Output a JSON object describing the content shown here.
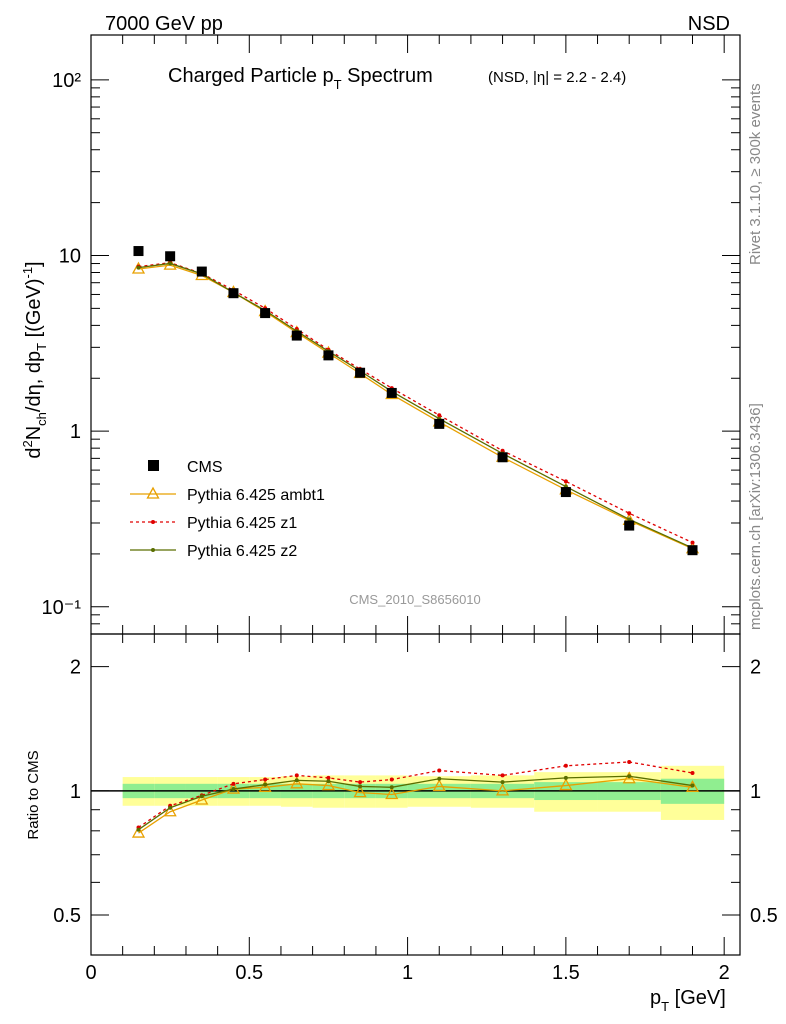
{
  "header": {
    "left": "7000 GeV pp",
    "right": "NSD"
  },
  "side_text": {
    "rivet": "Rivet 3.1.10, ≥ 300k events",
    "mcplots": "mcplots.cern.ch [arXiv:1306.3436]"
  },
  "chart_data": {
    "type": "line",
    "title_main": "Charged Particle p",
    "title_sub": "T",
    "title_main2": " Spectrum",
    "title_extra": "(NSD, |η| = 2.2 - 2.4)",
    "watermark": "CMS_2010_S8656010",
    "xlabel": "p",
    "xlabel_sub": "T",
    "xlabel_unit": " [GeV]",
    "xlim": [
      0,
      2.05
    ],
    "main_ylim_log": [
      0.07,
      180
    ],
    "ratio_ylim_log": [
      0.4,
      2.4
    ],
    "ylabel_ratio": "Ratio to CMS",
    "x_ticks": [
      "0",
      "0.5",
      "1",
      "1.5",
      "2"
    ],
    "main_y_ticks": [
      "10⁻¹",
      "1",
      "10",
      "10²"
    ],
    "ratio_y_ticks": [
      "0.5",
      "1",
      "2"
    ],
    "x": [
      0.15,
      0.25,
      0.35,
      0.45,
      0.55,
      0.65,
      0.75,
      0.85,
      0.95,
      1.1,
      1.3,
      1.5,
      1.7,
      1.9
    ],
    "bin_edges": [
      0.1,
      0.2,
      0.3,
      0.4,
      0.5,
      0.6,
      0.7,
      0.8,
      0.9,
      1.0,
      1.2,
      1.4,
      1.6,
      1.8,
      2.0
    ],
    "data": {
      "name": "CMS",
      "values": [
        10.6,
        9.9,
        8.1,
        6.1,
        4.7,
        3.5,
        2.7,
        2.15,
        1.65,
        1.1,
        0.71,
        0.45,
        0.29,
        0.21
      ],
      "band_green_half": [
        0.04,
        0.04,
        0.04,
        0.04,
        0.04,
        0.04,
        0.04,
        0.04,
        0.04,
        0.04,
        0.04,
        0.05,
        0.05,
        0.07
      ],
      "band_yellow_half": [
        0.08,
        0.08,
        0.08,
        0.08,
        0.08,
        0.085,
        0.09,
        0.09,
        0.09,
        0.085,
        0.09,
        0.11,
        0.11,
        0.15
      ]
    },
    "series": [
      {
        "name": "Pythia 6.425 ambt1",
        "color": "#e8a000",
        "marker": "triangle",
        "ratio": [
          0.79,
          0.89,
          0.95,
          1.01,
          1.02,
          1.04,
          1.03,
          0.99,
          0.98,
          1.025,
          1.0,
          1.03,
          1.07,
          1.02
        ]
      },
      {
        "name": "Pythia 6.425 z1",
        "color": "#e00000",
        "marker": "dot",
        "ratio": [
          0.815,
          0.92,
          0.975,
          1.04,
          1.065,
          1.09,
          1.075,
          1.05,
          1.065,
          1.12,
          1.09,
          1.15,
          1.175,
          1.105
        ]
      },
      {
        "name": "Pythia 6.425 z2",
        "color": "#5a6e00",
        "marker": "dot",
        "ratio": [
          0.805,
          0.91,
          0.97,
          1.01,
          1.035,
          1.06,
          1.055,
          1.025,
          1.02,
          1.07,
          1.05,
          1.075,
          1.085,
          1.03
        ]
      }
    ],
    "legend": {
      "placement": "bottom-left"
    },
    "colors": {
      "band_green": "#90ee90",
      "band_yellow": "#ffff99"
    }
  }
}
